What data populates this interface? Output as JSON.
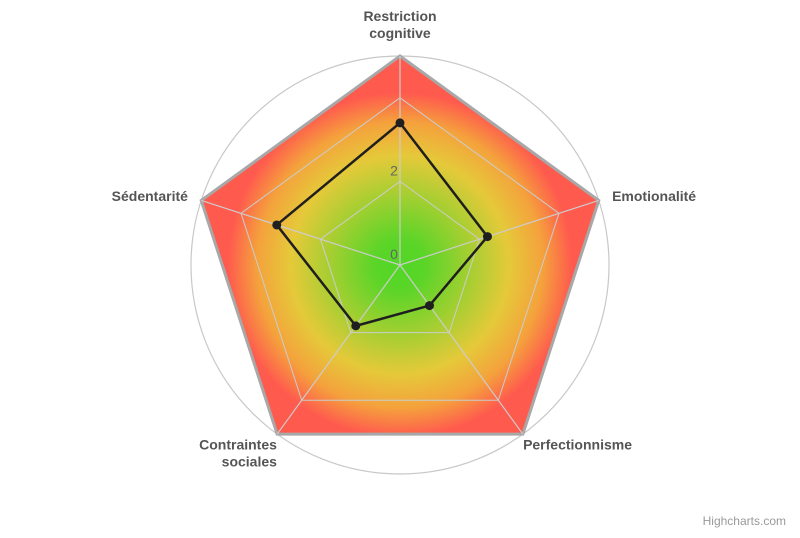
{
  "chart_data": {
    "type": "radar",
    "categories": [
      [
        "Restriction",
        "cognitive"
      ],
      [
        "Emotionalité"
      ],
      [
        "Perfectionnisme"
      ],
      [
        "Contraintes",
        "sociales"
      ],
      [
        "Sédentarité"
      ]
    ],
    "series": [
      {
        "values": [
          3.4,
          2.2,
          1.2,
          1.8,
          3.1
        ]
      }
    ],
    "y_ticks": [
      "0",
      "2"
    ],
    "rlim": [
      0,
      5
    ],
    "grid": "polygon",
    "background_gradient": [
      "#52d726",
      "#e5c93a",
      "#ff5a4e"
    ]
  },
  "credits": "Highcharts.com"
}
